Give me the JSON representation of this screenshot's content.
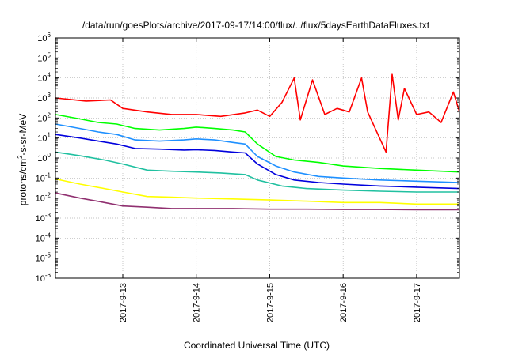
{
  "chart_data": {
    "type": "line",
    "title": "/data/run/goesPlots/archive/2017-09-17/14:00/flux/../flux/5daysEarthDataFluxes.txt",
    "xlabel": "Coordinated Universal Time (UTC)",
    "ylabel_parts": [
      "protons/cm",
      "2",
      "-s-sr-MeV"
    ],
    "y_scale": "log",
    "ylim": [
      1e-06,
      1000000.0
    ],
    "y_ticks": [
      {
        "base": "10",
        "exp": "-6"
      },
      {
        "base": "10",
        "exp": "-5"
      },
      {
        "base": "10",
        "exp": "-4"
      },
      {
        "base": "10",
        "exp": "-3"
      },
      {
        "base": "10",
        "exp": "-2"
      },
      {
        "base": "10",
        "exp": "-1"
      },
      {
        "base": "10",
        "exp": "0"
      },
      {
        "base": "10",
        "exp": "1"
      },
      {
        "base": "10",
        "exp": "2"
      },
      {
        "base": "10",
        "exp": "3"
      },
      {
        "base": "10",
        "exp": "4"
      },
      {
        "base": "10",
        "exp": "5"
      },
      {
        "base": "10",
        "exp": "6"
      }
    ],
    "xlim": [
      "2017-09-12 02:00",
      "2017-09-17 14:00"
    ],
    "x_ticks": [
      "2017-9-13",
      "2017-9-14",
      "2017-9-15",
      "2017-9-16",
      "2017-9-17"
    ],
    "grid": true,
    "series": [
      {
        "color": "#ff0000",
        "x": [
          "2017-09-12 02:00",
          "2017-09-12 12:00",
          "2017-09-12 20:00",
          "2017-09-13 00:00",
          "2017-09-13 08:00",
          "2017-09-13 16:00",
          "2017-09-14 00:00",
          "2017-09-14 08:00",
          "2017-09-14 16:00",
          "2017-09-14 20:00",
          "2017-09-15 00:00",
          "2017-09-15 04:00",
          "2017-09-15 08:00",
          "2017-09-15 10:00",
          "2017-09-15 14:00",
          "2017-09-15 18:00",
          "2017-09-15 22:00",
          "2017-09-16 02:00",
          "2017-09-16 06:00",
          "2017-09-16 08:00",
          "2017-09-16 14:00",
          "2017-09-16 16:00",
          "2017-09-16 18:00",
          "2017-09-16 20:00",
          "2017-09-17 00:00",
          "2017-09-17 04:00",
          "2017-09-17 08:00",
          "2017-09-17 12:00",
          "2017-09-17 14:00"
        ],
        "values": [
          1000,
          700,
          800,
          300,
          200,
          150,
          150,
          120,
          180,
          250,
          120,
          600,
          10000,
          80,
          8000,
          150,
          300,
          200,
          10000,
          200,
          2,
          15000,
          80,
          3000,
          150,
          200,
          60,
          2000,
          200
        ]
      },
      {
        "color": "#00ff00",
        "x": [
          "2017-09-12 02:00",
          "2017-09-12 10:00",
          "2017-09-12 16:00",
          "2017-09-12 22:00",
          "2017-09-13 04:00",
          "2017-09-13 12:00",
          "2017-09-13 20:00",
          "2017-09-14 00:00",
          "2017-09-14 06:00",
          "2017-09-14 12:00",
          "2017-09-14 16:00",
          "2017-09-14 20:00",
          "2017-09-15 02:00",
          "2017-09-15 08:00",
          "2017-09-15 16:00",
          "2017-09-16 00:00",
          "2017-09-16 12:00",
          "2017-09-17 00:00",
          "2017-09-17 14:00"
        ],
        "values": [
          150,
          90,
          60,
          50,
          30,
          25,
          30,
          35,
          30,
          25,
          20,
          5,
          1.2,
          0.8,
          0.6,
          0.4,
          0.3,
          0.25,
          0.2
        ]
      },
      {
        "color": "#1e90ff",
        "x": [
          "2017-09-12 02:00",
          "2017-09-12 10:00",
          "2017-09-12 16:00",
          "2017-09-12 22:00",
          "2017-09-13 04:00",
          "2017-09-13 12:00",
          "2017-09-13 20:00",
          "2017-09-14 00:00",
          "2017-09-14 06:00",
          "2017-09-14 12:00",
          "2017-09-14 16:00",
          "2017-09-14 20:00",
          "2017-09-15 02:00",
          "2017-09-15 08:00",
          "2017-09-15 16:00",
          "2017-09-16 00:00",
          "2017-09-16 12:00",
          "2017-09-17 00:00",
          "2017-09-17 14:00"
        ],
        "values": [
          50,
          30,
          20,
          15,
          8,
          7,
          8,
          9,
          8,
          6,
          5,
          1.2,
          0.4,
          0.2,
          0.12,
          0.1,
          0.08,
          0.07,
          0.06
        ]
      },
      {
        "color": "#0000dd",
        "x": [
          "2017-09-12 02:00",
          "2017-09-12 10:00",
          "2017-09-12 16:00",
          "2017-09-12 22:00",
          "2017-09-13 04:00",
          "2017-09-13 12:00",
          "2017-09-13 20:00",
          "2017-09-14 00:00",
          "2017-09-14 06:00",
          "2017-09-14 12:00",
          "2017-09-14 16:00",
          "2017-09-14 20:00",
          "2017-09-15 02:00",
          "2017-09-15 08:00",
          "2017-09-15 16:00",
          "2017-09-16 00:00",
          "2017-09-16 12:00",
          "2017-09-17 00:00",
          "2017-09-17 14:00"
        ],
        "values": [
          15,
          10,
          7,
          5,
          3,
          2.8,
          2.5,
          2.6,
          2.4,
          2,
          1.8,
          0.5,
          0.15,
          0.08,
          0.06,
          0.05,
          0.04,
          0.035,
          0.03
        ]
      },
      {
        "color": "#20c0a0",
        "x": [
          "2017-09-12 02:00",
          "2017-09-12 10:00",
          "2017-09-12 18:00",
          "2017-09-13 00:00",
          "2017-09-13 08:00",
          "2017-09-13 16:00",
          "2017-09-14 00:00",
          "2017-09-14 08:00",
          "2017-09-14 16:00",
          "2017-09-14 20:00",
          "2017-09-15 04:00",
          "2017-09-15 12:00",
          "2017-09-16 00:00",
          "2017-09-16 12:00",
          "2017-09-17 00:00",
          "2017-09-17 14:00"
        ],
        "values": [
          2,
          1.3,
          0.8,
          0.5,
          0.25,
          0.22,
          0.2,
          0.18,
          0.15,
          0.08,
          0.04,
          0.03,
          0.025,
          0.022,
          0.02,
          0.02
        ]
      },
      {
        "color": "#ffff00",
        "x": [
          "2017-09-12 02:00",
          "2017-09-12 10:00",
          "2017-09-12 18:00",
          "2017-09-13 00:00",
          "2017-09-13 08:00",
          "2017-09-13 16:00",
          "2017-09-14 00:00",
          "2017-09-14 12:00",
          "2017-09-15 00:00",
          "2017-09-15 12:00",
          "2017-09-16 00:00",
          "2017-09-16 12:00",
          "2017-09-17 00:00",
          "2017-09-17 14:00"
        ],
        "values": [
          0.09,
          0.05,
          0.03,
          0.02,
          0.012,
          0.011,
          0.01,
          0.009,
          0.008,
          0.007,
          0.006,
          0.006,
          0.005,
          0.005
        ]
      },
      {
        "color": "#903070",
        "x": [
          "2017-09-12 02:00",
          "2017-09-12 10:00",
          "2017-09-12 18:00",
          "2017-09-13 00:00",
          "2017-09-13 08:00",
          "2017-09-13 16:00",
          "2017-09-14 00:00",
          "2017-09-14 12:00",
          "2017-09-15 00:00",
          "2017-09-15 12:00",
          "2017-09-16 00:00",
          "2017-09-16 12:00",
          "2017-09-17 00:00",
          "2017-09-17 14:00"
        ],
        "values": [
          0.018,
          0.01,
          0.006,
          0.004,
          0.0035,
          0.003,
          0.003,
          0.003,
          0.0028,
          0.0028,
          0.0027,
          0.0027,
          0.0026,
          0.0026
        ]
      }
    ]
  }
}
